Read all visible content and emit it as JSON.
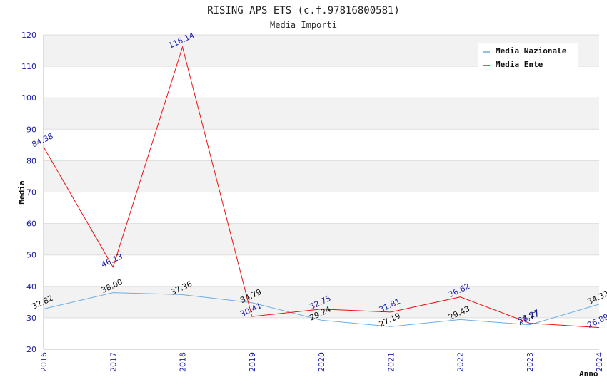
{
  "chart_data": {
    "type": "line",
    "title": "RISING APS ETS (c.f.97816800581)",
    "subtitle": "Media Importi",
    "xlabel": "Anno",
    "ylabel": "Media",
    "ylim": [
      20,
      120
    ],
    "yticks": [
      20,
      30,
      40,
      50,
      60,
      70,
      80,
      90,
      100,
      110,
      120
    ],
    "categories": [
      "2016",
      "2017",
      "2018",
      "2019",
      "2020",
      "2021",
      "2022",
      "2023",
      "2024"
    ],
    "series": [
      {
        "name": "Media Nazionale",
        "color": "#6aaee8",
        "label_color": "#111111",
        "values": [
          32.82,
          38.0,
          37.36,
          34.79,
          29.24,
          27.19,
          29.43,
          27.77,
          34.32
        ],
        "labels": [
          "32.82",
          "38.00",
          "37.36",
          "34.79",
          "29.24",
          "27.19",
          "29.43",
          "27.77",
          "34.32"
        ]
      },
      {
        "name": "Media Ente",
        "color": "#ee1111",
        "label_color": "#1a1aa8",
        "values": [
          84.38,
          46.13,
          116.14,
          30.41,
          32.75,
          31.81,
          36.62,
          28.27,
          26.89
        ],
        "labels": [
          "84.38",
          "46.13",
          "116.14",
          "30.41",
          "32.75",
          "31.81",
          "36.62",
          "28.27",
          "26.89"
        ]
      }
    ],
    "legend_position": "top-right",
    "grid": true
  }
}
